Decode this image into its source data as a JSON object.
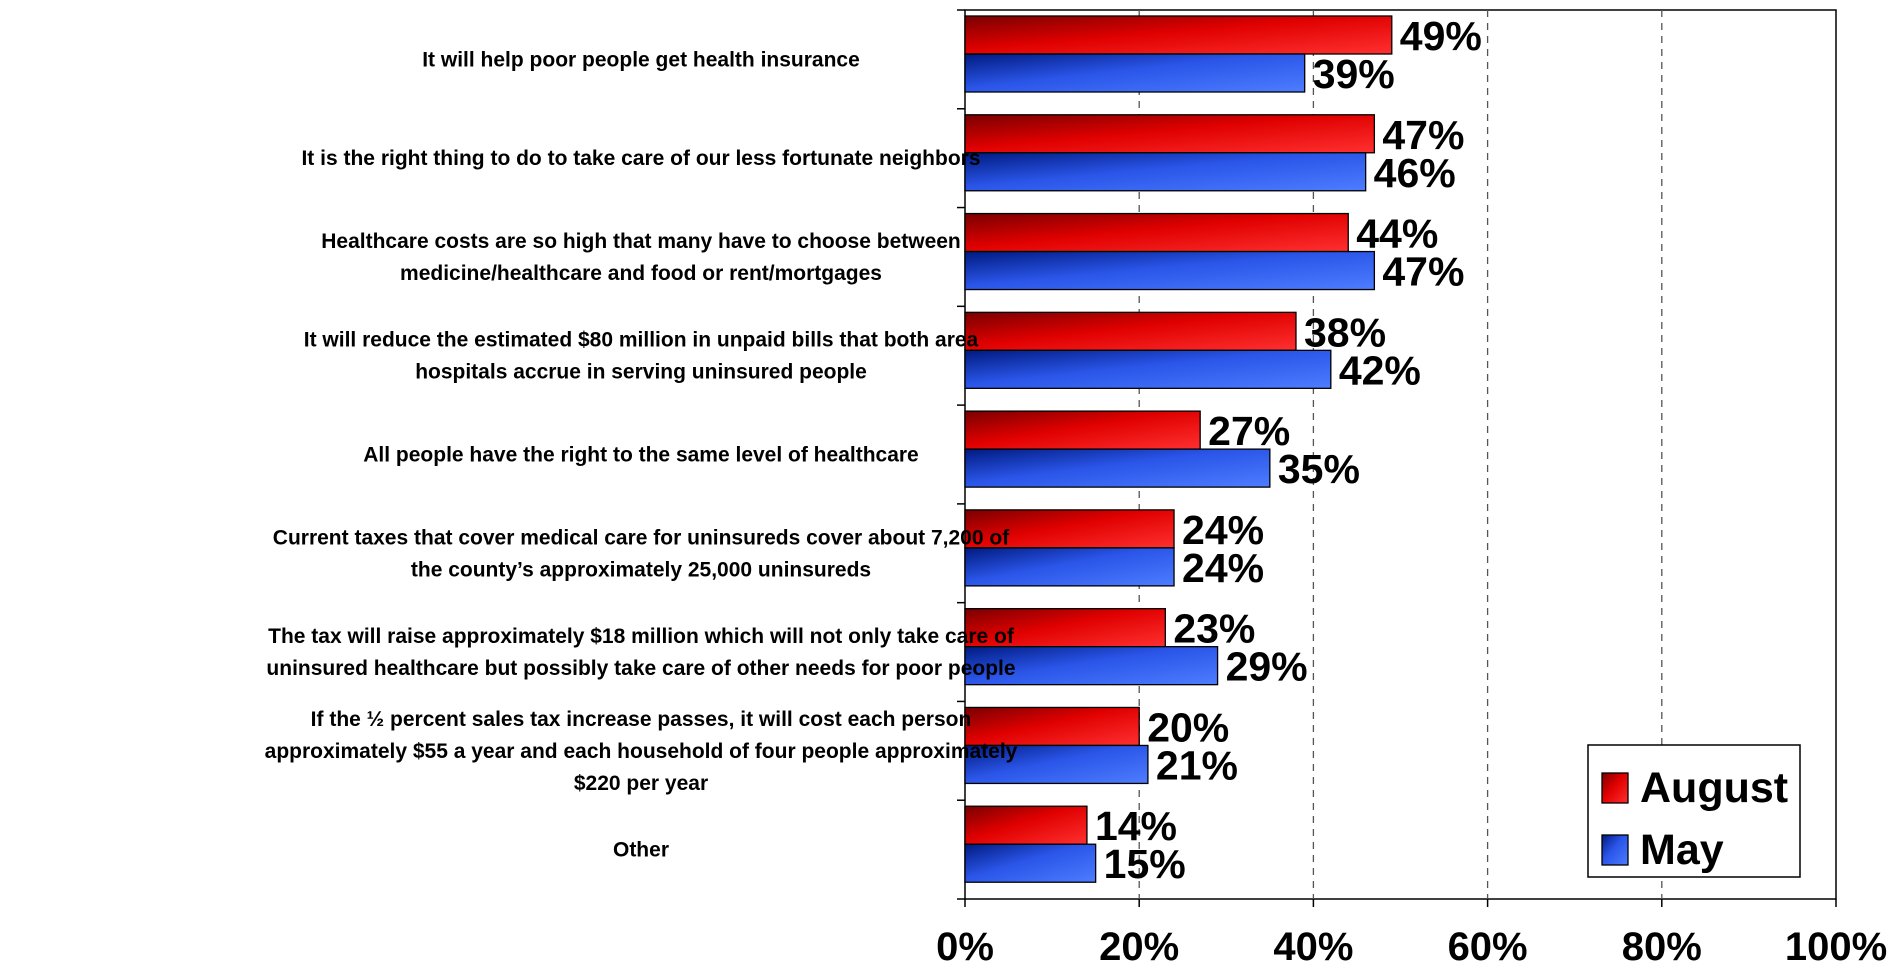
{
  "chart_data": {
    "type": "bar",
    "orientation": "horizontal",
    "categories": [
      [
        "It will help poor people get health insurance"
      ],
      [
        "It is the right thing to do to take care of our less fortunate neighbors"
      ],
      [
        "Healthcare costs are so high that many have to choose between",
        "medicine/healthcare and food or rent/mortgages"
      ],
      [
        "It will reduce the estimated $80 million in unpaid bills that both area",
        "hospitals accrue in serving uninsured people"
      ],
      [
        "All people have the right to the same level of healthcare"
      ],
      [
        "Current taxes that cover medical care for uninsureds cover about 7,200 of",
        "the county’s approximately 25,000 uninsureds"
      ],
      [
        "The tax will raise approximately $18 million which will not only take care of",
        "uninsured healthcare but possibly take care of other needs for poor people"
      ],
      [
        "If the ½ percent sales tax increase passes, it will cost each person",
        "approximately $55 a year and each household of four people approximately",
        "$220 per year"
      ],
      [
        "Other"
      ]
    ],
    "series": [
      {
        "name": "August",
        "color": "#ff2020",
        "values": [
          49,
          47,
          44,
          38,
          27,
          24,
          23,
          20,
          14
        ]
      },
      {
        "name": "May",
        "color": "#3366ff",
        "values": [
          39,
          46,
          47,
          42,
          35,
          24,
          29,
          21,
          15
        ]
      }
    ],
    "value_labels": {
      "August": [
        "49%",
        "47%",
        "44%",
        "38%",
        "27%",
        "24%",
        "23%",
        "20%",
        "14%"
      ],
      "May": [
        "39%",
        "46%",
        "47%",
        "42%",
        "35%",
        "24%",
        "29%",
        "21%",
        "15%"
      ]
    },
    "xlim": [
      0,
      100
    ],
    "x_ticks": [
      0,
      20,
      40,
      60,
      80,
      100
    ],
    "x_tick_labels": [
      "0%",
      "20%",
      "40%",
      "60%",
      "80%",
      "100%"
    ],
    "grid": "vertical dashed",
    "legend": {
      "position": "bottom-right",
      "entries": [
        "August",
        "May"
      ]
    },
    "title": "",
    "xlabel": "",
    "ylabel": ""
  }
}
